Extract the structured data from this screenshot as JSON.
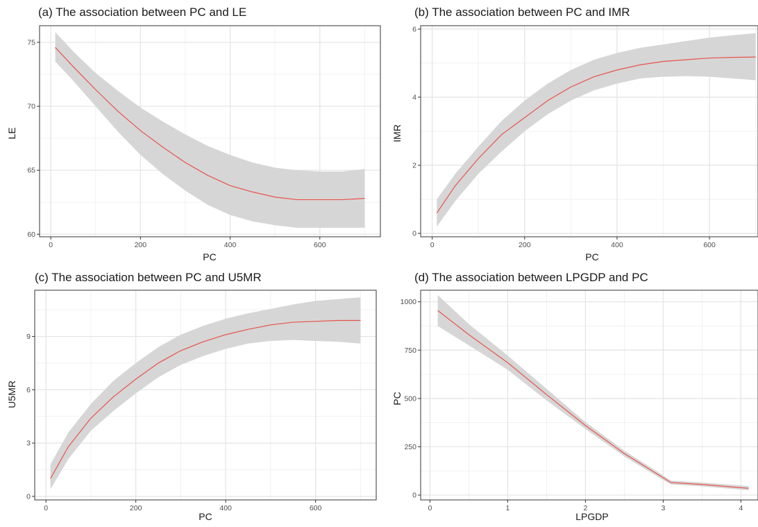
{
  "colors": {
    "line": "#e8524a",
    "ribbon": "#d6d6d6",
    "grid_major": "#e3e3e3",
    "grid_minor": "#f1f1f1",
    "frame": "#333333",
    "background": "#ffffff"
  },
  "chart_data": [
    {
      "type": "line",
      "title": "(a) The association between PC and LE",
      "xlabel": "PC",
      "ylabel": "LE",
      "xlim": [
        -25,
        735
      ],
      "ylim": [
        59.8,
        76.3
      ],
      "xticks": [
        0,
        200,
        400,
        600
      ],
      "yticks": [
        60,
        65,
        70,
        75
      ],
      "grid": true,
      "series": [
        {
          "x": [
            10,
            50,
            100,
            150,
            200,
            250,
            300,
            350,
            400,
            450,
            500,
            550,
            600,
            650,
            700
          ],
          "y": [
            74.6,
            73.1,
            71.3,
            69.6,
            68.1,
            66.8,
            65.6,
            64.6,
            63.8,
            63.3,
            62.9,
            62.7,
            62.7,
            62.7,
            62.8
          ],
          "lower": [
            73.5,
            72.0,
            70.0,
            68.0,
            66.2,
            64.7,
            63.4,
            62.3,
            61.5,
            61.0,
            60.7,
            60.5,
            60.5,
            60.5,
            60.5
          ],
          "upper": [
            75.8,
            74.3,
            72.6,
            71.2,
            69.9,
            68.8,
            67.8,
            66.9,
            66.2,
            65.6,
            65.2,
            65.0,
            64.9,
            64.9,
            65.1
          ]
        }
      ]
    },
    {
      "type": "line",
      "title": "(b) The association between PC and IMR",
      "xlabel": "PC",
      "ylabel": "IMR",
      "xlim": [
        -25,
        705
      ],
      "ylim": [
        -0.1,
        6.1
      ],
      "xticks": [
        0,
        200,
        400,
        600
      ],
      "yticks": [
        0,
        2,
        4,
        6
      ],
      "grid": true,
      "series": [
        {
          "x": [
            10,
            50,
            100,
            150,
            200,
            250,
            300,
            350,
            400,
            450,
            500,
            550,
            600,
            650,
            700
          ],
          "y": [
            0.6,
            1.4,
            2.2,
            2.9,
            3.4,
            3.9,
            4.3,
            4.6,
            4.8,
            4.95,
            5.05,
            5.1,
            5.15,
            5.17,
            5.18
          ],
          "lower": [
            0.2,
            0.95,
            1.75,
            2.4,
            3.0,
            3.5,
            3.9,
            4.2,
            4.4,
            4.55,
            4.6,
            4.62,
            4.6,
            4.55,
            4.5
          ],
          "upper": [
            1.0,
            1.75,
            2.55,
            3.3,
            3.9,
            4.4,
            4.8,
            5.1,
            5.3,
            5.45,
            5.55,
            5.65,
            5.75,
            5.82,
            5.88
          ]
        }
      ]
    },
    {
      "type": "line",
      "title": "(c) The association between PC and U5MR",
      "xlabel": "PC",
      "ylabel": "U5MR",
      "xlim": [
        -25,
        735
      ],
      "ylim": [
        -0.2,
        11.6
      ],
      "xticks": [
        0,
        200,
        400,
        600
      ],
      "yticks": [
        0,
        3,
        6,
        9
      ],
      "grid": true,
      "series": [
        {
          "x": [
            10,
            50,
            100,
            150,
            200,
            250,
            300,
            350,
            400,
            450,
            500,
            550,
            600,
            650,
            700
          ],
          "y": [
            1.0,
            2.8,
            4.4,
            5.6,
            6.6,
            7.5,
            8.2,
            8.7,
            9.1,
            9.4,
            9.65,
            9.8,
            9.85,
            9.9,
            9.9
          ],
          "lower": [
            0.4,
            2.1,
            3.7,
            4.8,
            5.8,
            6.7,
            7.4,
            7.9,
            8.3,
            8.6,
            8.75,
            8.8,
            8.75,
            8.7,
            8.6
          ],
          "upper": [
            1.8,
            3.6,
            5.2,
            6.5,
            7.5,
            8.4,
            9.1,
            9.6,
            10.0,
            10.3,
            10.55,
            10.8,
            11.0,
            11.1,
            11.2
          ]
        }
      ]
    },
    {
      "type": "line",
      "title": "(d) The association between LPGDP and PC",
      "xlabel": "LPGDP",
      "ylabel": "PC",
      "xlim": [
        -0.12,
        4.22
      ],
      "ylim": [
        -25,
        1060
      ],
      "xticks": [
        0,
        1,
        2,
        3,
        4
      ],
      "yticks": [
        0,
        250,
        500,
        750,
        1000
      ],
      "grid": true,
      "series": [
        {
          "x": [
            0.1,
            0.5,
            1.0,
            1.5,
            2.0,
            2.5,
            3.0,
            3.1,
            3.5,
            4.1
          ],
          "y": [
            955,
            830,
            685,
            520,
            360,
            215,
            90,
            65,
            55,
            35
          ],
          "lower": [
            875,
            775,
            648,
            490,
            342,
            200,
            78,
            55,
            45,
            25
          ],
          "upper": [
            1035,
            885,
            722,
            550,
            378,
            230,
            102,
            75,
            65,
            47
          ]
        }
      ]
    }
  ]
}
